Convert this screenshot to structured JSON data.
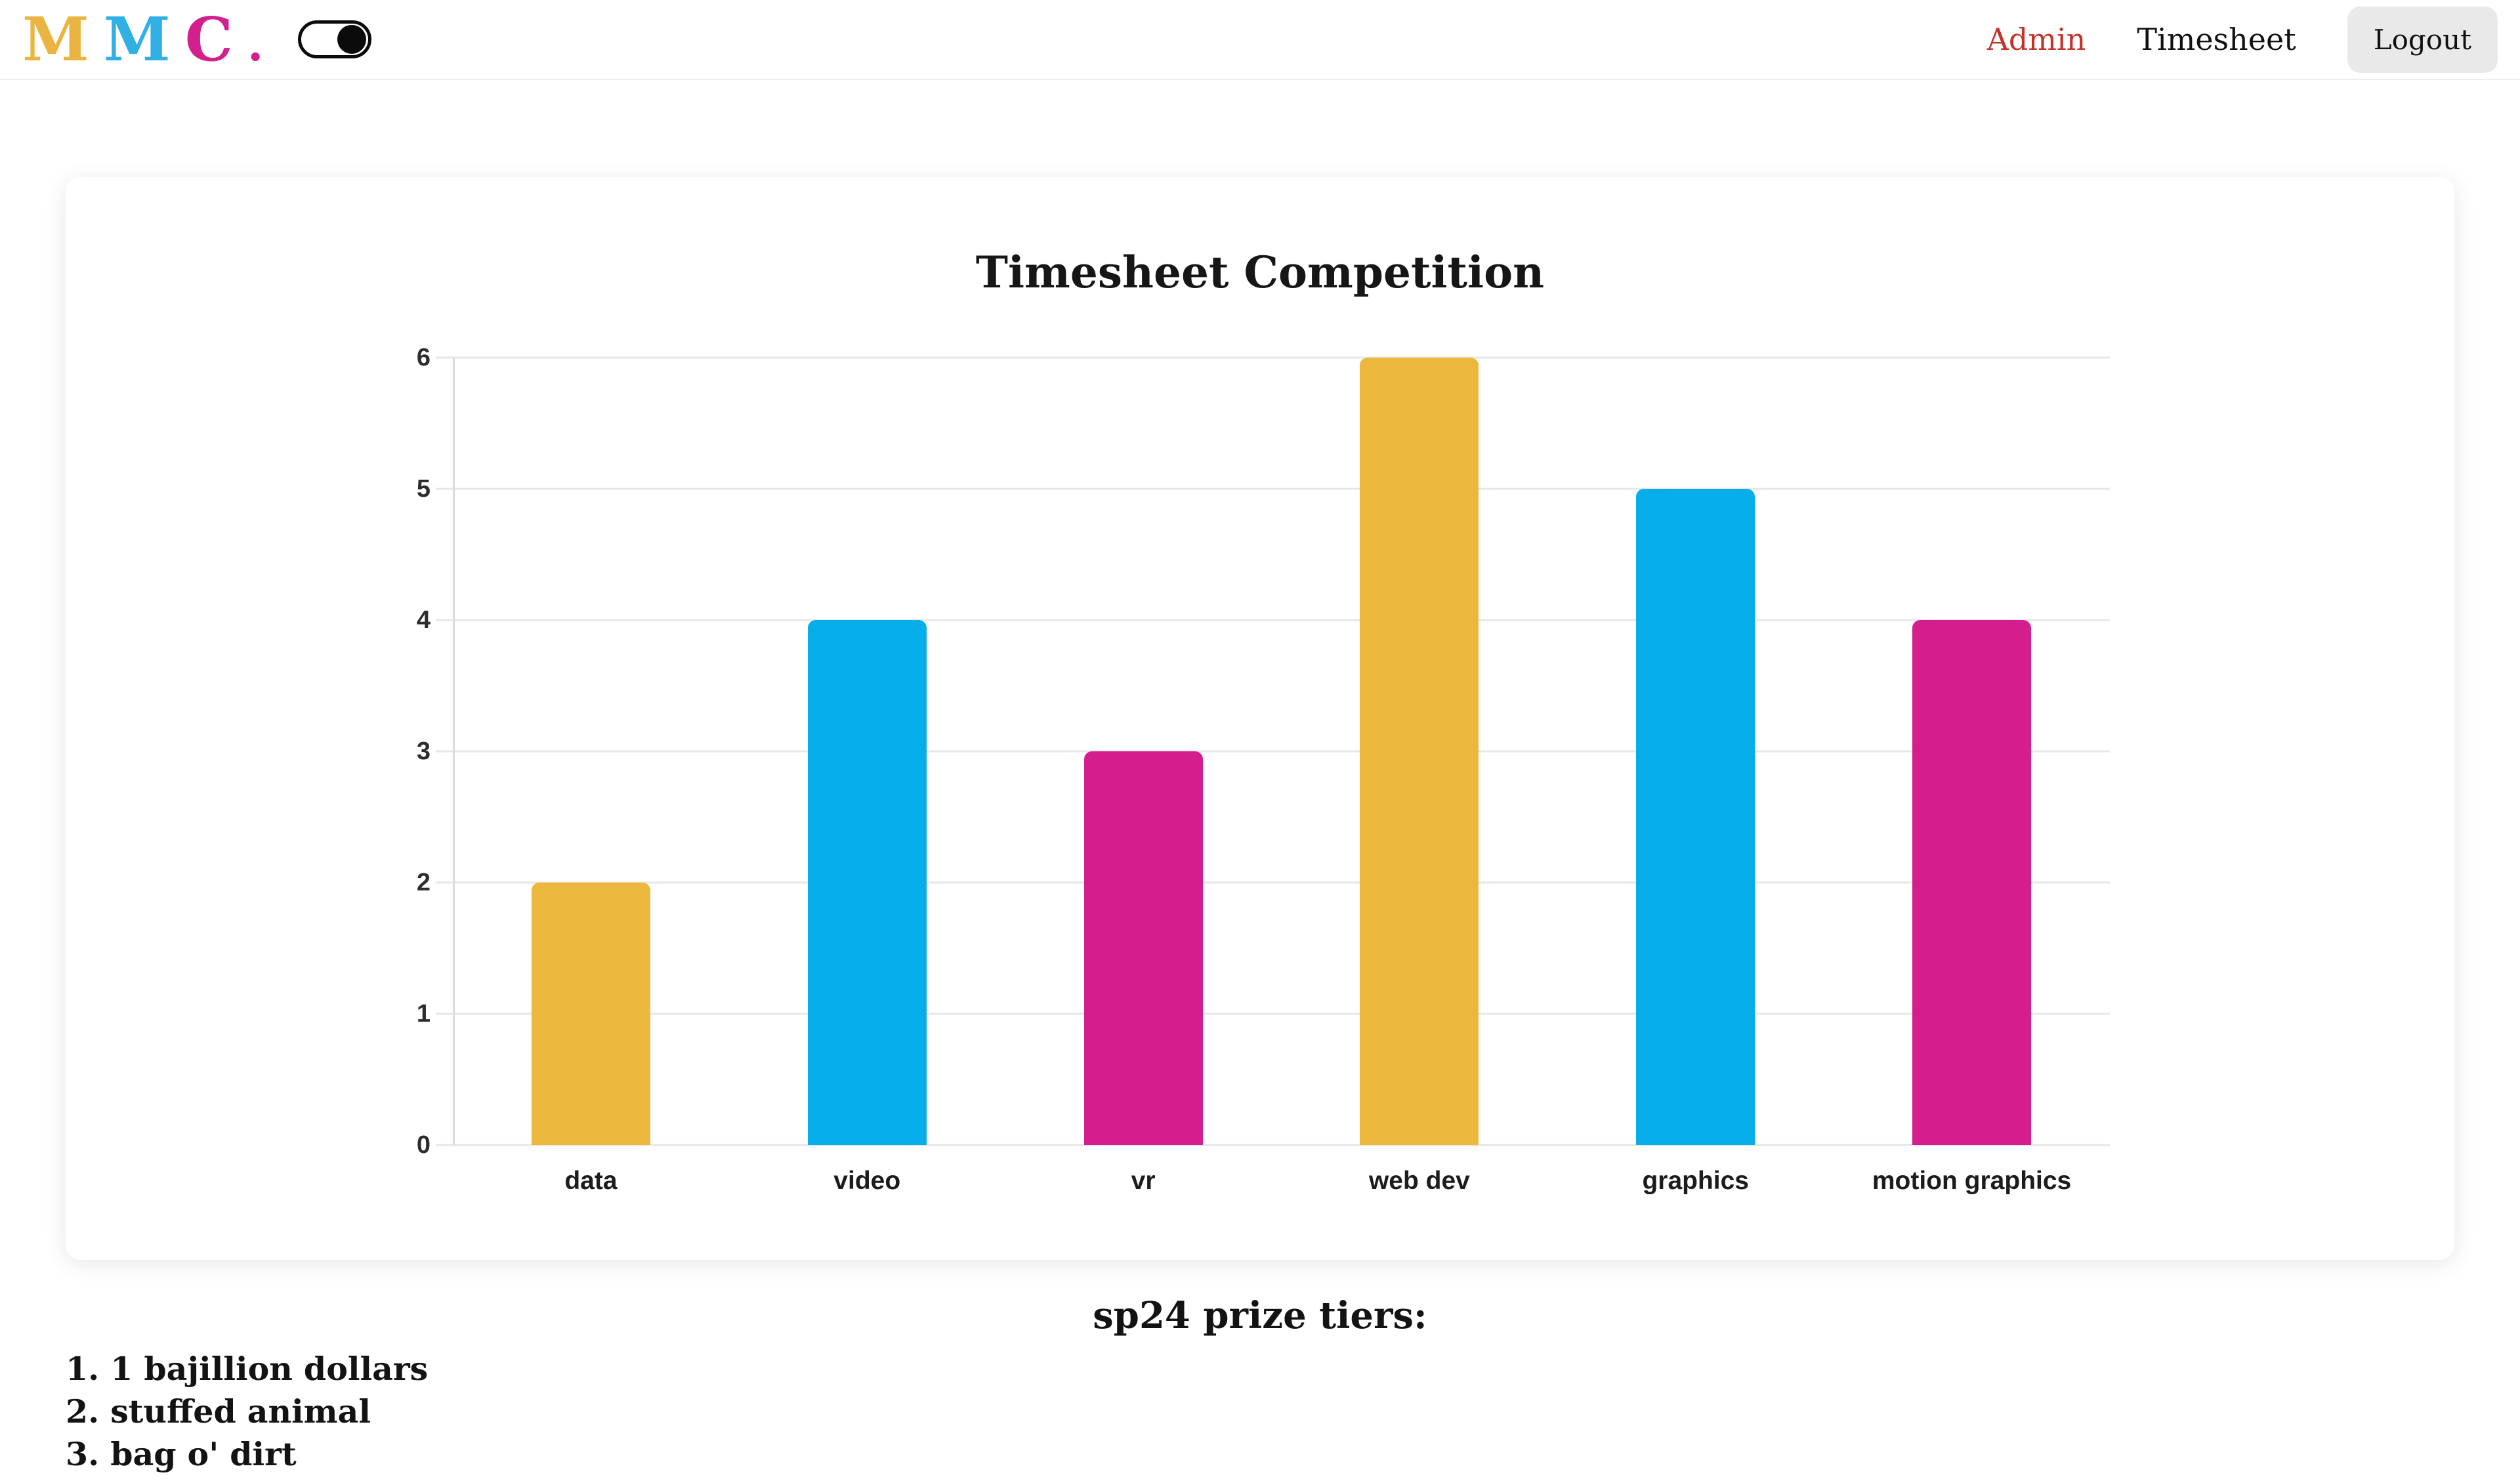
{
  "header": {
    "logo": {
      "letters": [
        {
          "char": "M",
          "color": "#eab440"
        },
        {
          "char": "M",
          "color": "#31b0e6"
        },
        {
          "char": "C",
          "color": "#d2208f"
        },
        {
          "char": ".",
          "color": "#d2208f"
        }
      ]
    },
    "toggle": {
      "state": "on"
    },
    "nav": [
      {
        "label": "Admin",
        "color": "#c4332a"
      },
      {
        "label": "Timesheet",
        "color": "#111111"
      }
    ],
    "logout_label": "Logout"
  },
  "chart_data": {
    "type": "bar",
    "title": "Timesheet Competition",
    "categories": [
      "data",
      "video",
      "vr",
      "web dev",
      "graphics",
      "motion graphics"
    ],
    "values": [
      2,
      4,
      3,
      6,
      5,
      4
    ],
    "bar_colors": [
      "#ecb73d",
      "#05ade9",
      "#d41e8d",
      "#ecb73d",
      "#05ade9",
      "#d41e8d"
    ],
    "xlabel": "",
    "ylabel": "",
    "ylim": [
      0,
      6
    ],
    "yticks": [
      0,
      1,
      2,
      3,
      4,
      5,
      6
    ],
    "grid": true,
    "legend": false
  },
  "prizes": {
    "heading": "sp24 prize tiers:",
    "items": [
      "1. 1 bajillion dollars",
      "2. stuffed animal",
      "3. bag o' dirt"
    ]
  }
}
